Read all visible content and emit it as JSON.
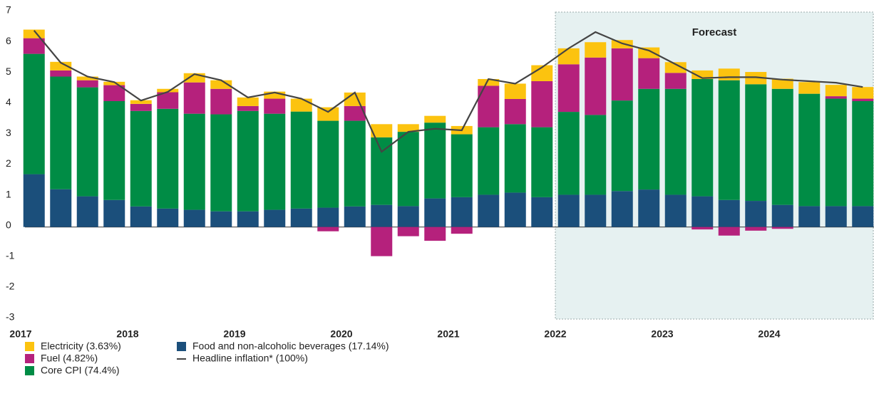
{
  "chart_data": {
    "type": "bar",
    "stacked": true,
    "categories": [
      "2017",
      null,
      null,
      null,
      "2018",
      null,
      null,
      null,
      "2019",
      null,
      null,
      null,
      "2020",
      null,
      null,
      null,
      "2021",
      null,
      null,
      null,
      "2022",
      null,
      null,
      null,
      "2023",
      null,
      null,
      null,
      "2024",
      null,
      null,
      null
    ],
    "series": [
      {
        "name": "Electricity (3.63%)",
        "color": "#fcc30f",
        "stack": "bar",
        "values": [
          0.28,
          0.28,
          0.12,
          0.11,
          0.12,
          0.11,
          0.3,
          0.28,
          0.28,
          0.23,
          0.42,
          0.44,
          0.44,
          0.43,
          0.25,
          0.22,
          0.27,
          0.22,
          0.5,
          0.52,
          0.52,
          0.5,
          0.27,
          0.35,
          0.35,
          0.28,
          0.38,
          0.4,
          0.33,
          0.38,
          0.37,
          0.38
        ]
      },
      {
        "name": "Fuel (4.82%)",
        "color": "#b5217c",
        "stack": "bar",
        "values": [
          0.51,
          0.2,
          0.23,
          0.52,
          0.23,
          0.54,
          1.02,
          0.83,
          0.16,
          0.49,
          0,
          -0.14,
          0.48,
          -0.95,
          -0.3,
          -0.45,
          -0.22,
          1.35,
          0.82,
          1.5,
          1.55,
          1.87,
          1.7,
          1.0,
          0.52,
          -0.08,
          -0.28,
          -0.12,
          -0.06,
          0,
          0.08,
          0.08
        ]
      },
      {
        "name": "Core CPI (74.4%)",
        "color": "#008c45",
        "stack": "bar",
        "values": [
          3.92,
          3.67,
          3.55,
          3.22,
          3.11,
          3.25,
          3.13,
          3.16,
          3.27,
          3.13,
          3.16,
          2.83,
          2.79,
          2.2,
          2.42,
          2.47,
          2.05,
          2.2,
          2.23,
          2.28,
          2.7,
          2.6,
          2.95,
          3.28,
          3.45,
          3.82,
          3.9,
          3.8,
          3.78,
          3.66,
          3.5,
          3.42
        ]
      },
      {
        "name": "Food and non-alcoholic beverages (17.14%)",
        "color": "#1b4f7b",
        "stack": "bar",
        "values": [
          1.72,
          1.23,
          1.0,
          0.88,
          0.67,
          0.6,
          0.56,
          0.51,
          0.51,
          0.56,
          0.6,
          0.63,
          0.67,
          0.72,
          0.68,
          0.93,
          0.97,
          1.05,
          1.12,
          0.97,
          1.05,
          1.05,
          1.17,
          1.22,
          1.05,
          1.0,
          0.88,
          0.85,
          0.72,
          0.68,
          0.68,
          0.68
        ]
      },
      {
        "name": "Headline inflation* (100%)",
        "color": "#444444",
        "type": "line",
        "values": [
          6.4,
          5.35,
          4.9,
          4.72,
          4.12,
          4.4,
          4.98,
          4.78,
          4.22,
          4.38,
          4.18,
          3.75,
          4.38,
          2.45,
          3.1,
          3.2,
          3.15,
          4.82,
          4.67,
          5.2,
          5.82,
          6.35,
          5.98,
          5.75,
          5.3,
          4.85,
          4.88,
          4.88,
          4.8,
          4.75,
          4.7,
          4.56
        ]
      }
    ],
    "ylim": [
      -3,
      7
    ],
    "yticks": [
      -3,
      -2,
      -1,
      0,
      1,
      2,
      3,
      4,
      5,
      6,
      7
    ],
    "annotations": [
      {
        "text": "Forecast",
        "x": "2022"
      }
    ]
  }
}
